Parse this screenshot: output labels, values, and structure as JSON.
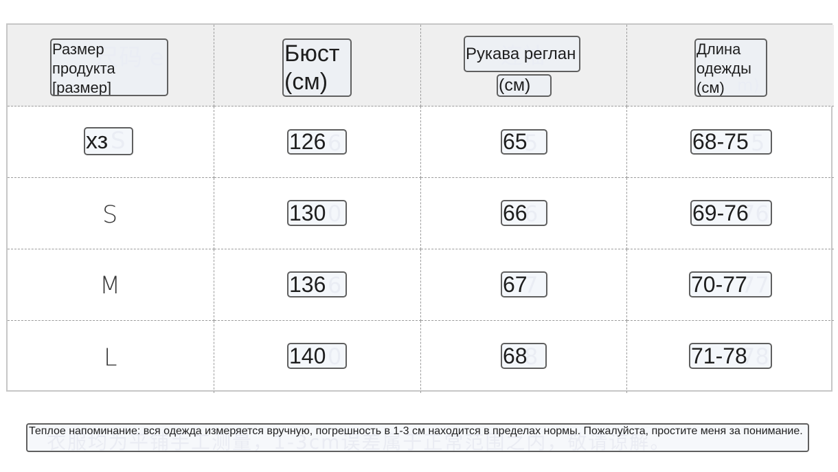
{
  "table": {
    "headers": [
      {
        "label": "Размер продукта [размер]",
        "ghost": "尺码 e"
      },
      {
        "label": "Бюст (см)",
        "ghost": ""
      },
      {
        "label_line1": "Рукава реглан",
        "label_line2": "(см)",
        "ghost": "连袖"
      },
      {
        "label": "Длина одежды (см)",
        "ghost": "m)"
      }
    ],
    "rows": [
      {
        "size": "хз",
        "size_ghost": "S",
        "bust": "126",
        "bust_ghost": "6",
        "sleeve": "65",
        "sleeve_ghost": "5",
        "length": "68-75",
        "length_ghost": "5"
      },
      {
        "size": "S",
        "bust": "130",
        "bust_ghost": "0",
        "sleeve": "66",
        "sleeve_ghost": "6",
        "length": "69-76",
        "length_ghost": "76"
      },
      {
        "size": "M",
        "bust": "136",
        "bust_ghost": "6",
        "sleeve": "67",
        "sleeve_ghost": "7",
        "length": "70-77",
        "length_ghost": "77"
      },
      {
        "size": "L",
        "bust": "140",
        "bust_ghost": "0",
        "sleeve": "68",
        "sleeve_ghost": "8",
        "length": "71-78",
        "length_ghost": "78"
      }
    ]
  },
  "note": {
    "text": "Теплое напоминание: вся одежда измеряется вручную, погрешность в 1-3 см находится в пределах нормы. Пожалуйста, простите меня за понимание.",
    "ghost": "衣服均为平铺手工测量，1-3cm误差属于正常范围之内，敬请谅解。"
  }
}
